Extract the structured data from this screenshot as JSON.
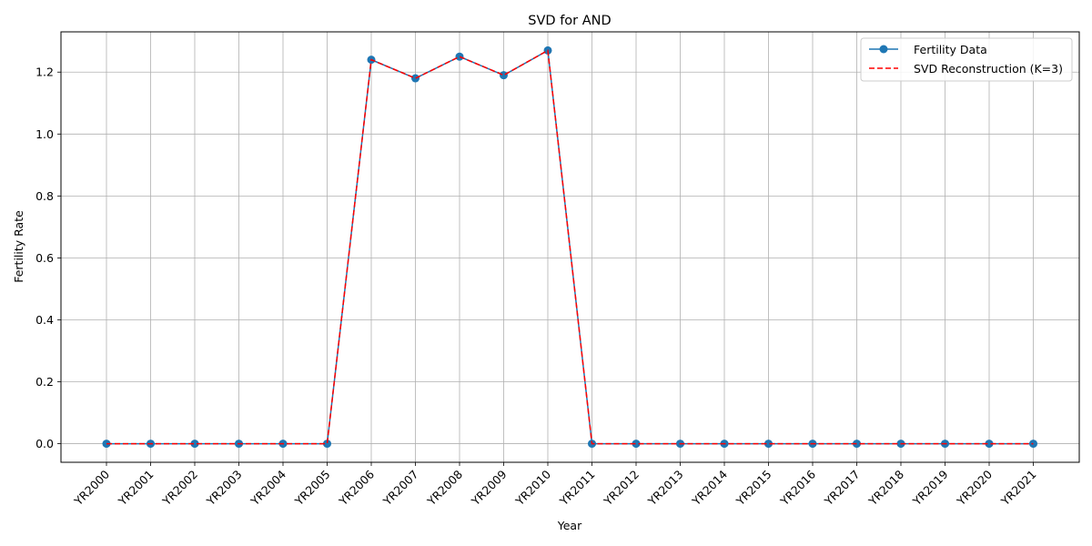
{
  "chart_data": {
    "type": "line",
    "title": "SVD for AND",
    "xlabel": "Year",
    "ylabel": "Fertility Rate",
    "categories": [
      "YR2000",
      "YR2001",
      "YR2002",
      "YR2003",
      "YR2004",
      "YR2005",
      "YR2006",
      "YR2007",
      "YR2008",
      "YR2009",
      "YR2010",
      "YR2011",
      "YR2012",
      "YR2013",
      "YR2014",
      "YR2015",
      "YR2016",
      "YR2017",
      "YR2018",
      "YR2019",
      "YR2020",
      "YR2021"
    ],
    "yticks": [
      "0.0",
      "0.2",
      "0.4",
      "0.6",
      "0.8",
      "1.0",
      "1.2"
    ],
    "ylim": [
      -0.06,
      1.33
    ],
    "grid": true,
    "legend_position": "top-right",
    "series": [
      {
        "name": "Fertility Data",
        "style": "solid-with-circle-markers",
        "color": "#1f77b4",
        "values": [
          0,
          0,
          0,
          0,
          0,
          0,
          1.24,
          1.18,
          1.25,
          1.19,
          1.27,
          0,
          0,
          0,
          0,
          0,
          0,
          0,
          0,
          0,
          0,
          0
        ]
      },
      {
        "name": "SVD Reconstruction (K=3)",
        "style": "dashed",
        "color": "#ff0000",
        "values": [
          0,
          0,
          0,
          0,
          0,
          0,
          1.24,
          1.18,
          1.25,
          1.19,
          1.27,
          0,
          0,
          0,
          0,
          0,
          0,
          0,
          0,
          0,
          0,
          0
        ]
      }
    ]
  }
}
